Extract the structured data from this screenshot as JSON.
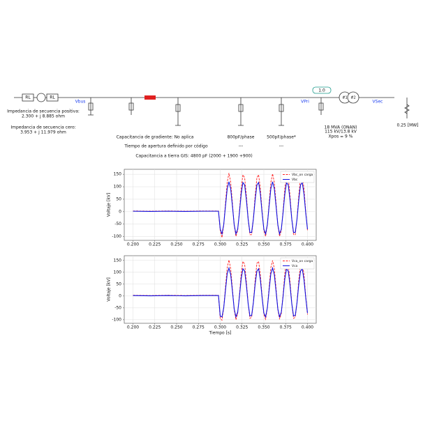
{
  "diagram": {
    "source": {
      "rl1": "RL",
      "rl2": "RL"
    },
    "buses": {
      "vbus": "Vbus",
      "vpri": "VPri",
      "vsec": "VSec"
    },
    "gain": "1.0",
    "transformer": {
      "w1": "#1",
      "w2": "#2",
      "rating": "18 MVA (ONAN)",
      "voltage": "115 kV/13.8 kV",
      "xpos": "Xpos = 9 %"
    },
    "load": "0.25 [MW]",
    "impedance": {
      "pos_label": "Impedancia de secuencia positiva:",
      "pos_value": "2.300 + j 8.885 ohm",
      "zero_label": "Impedancia de secuencia cero:",
      "zero_value": "3.953 + j 11.979 ohm"
    },
    "notes": {
      "gradient": "Capacitancia de gradiente: No aplica",
      "opening": "Tiempo de apertura definido por código",
      "gis": "Capacitancia a tierra GIS: 4800 pF (2000 + 1900 +900)"
    },
    "caps": [
      {
        "label": "800pF/phase",
        "value": "---"
      },
      {
        "label": "500pF/phase*",
        "value": "---"
      }
    ]
  },
  "chart_data": [
    {
      "type": "line",
      "ylabel": "Voltaje [kV]",
      "grid": true,
      "legend": "upper right",
      "x": [
        0.2,
        0.22,
        0.24,
        0.26,
        0.28,
        0.298,
        0.3,
        0.302,
        0.304,
        0.306,
        0.308,
        0.31,
        0.312,
        0.314,
        0.316,
        0.318,
        0.32,
        0.322,
        0.324,
        0.326,
        0.328,
        0.33,
        0.332,
        0.334,
        0.336,
        0.338,
        0.34,
        0.342,
        0.344,
        0.346,
        0.348,
        0.35,
        0.352,
        0.354,
        0.356,
        0.358,
        0.36,
        0.362,
        0.364,
        0.366,
        0.368,
        0.37,
        0.372,
        0.374,
        0.376,
        0.378,
        0.38,
        0.382,
        0.384,
        0.386,
        0.388,
        0.39,
        0.392,
        0.394,
        0.396,
        0.398,
        0.4
      ],
      "xlim": [
        0.19,
        0.41
      ],
      "ylim": [
        -115,
        170
      ],
      "xticks": [
        {
          "value": 0.2,
          "label": "0.200"
        },
        {
          "value": 0.225,
          "label": "0.225"
        },
        {
          "value": 0.25,
          "label": "0.250"
        },
        {
          "value": 0.275,
          "label": "0.275"
        },
        {
          "value": 0.3,
          "label": "0.300"
        },
        {
          "value": 0.325,
          "label": "0.325"
        },
        {
          "value": 0.35,
          "label": "0.350"
        },
        {
          "value": 0.375,
          "label": "0.375"
        },
        {
          "value": 0.4,
          "label": "0.400"
        }
      ],
      "yticks": [
        -100,
        -50,
        0,
        50,
        100,
        150
      ],
      "series": [
        {
          "name": "Vbc_on carga",
          "color": "#ff2020",
          "style": "dashed",
          "values": [
            3,
            2,
            3,
            2,
            3,
            3,
            -76,
            -104,
            -54,
            34,
            118,
            155,
            118,
            34,
            -54,
            -99,
            -76,
            2,
            93,
            148,
            136,
            64,
            -28,
            -92,
            -92,
            -28,
            64,
            136,
            148,
            93,
            2,
            -76,
            -99,
            -54,
            34,
            118,
            152,
            118,
            34,
            -54,
            -99,
            -76,
            2,
            93,
            145,
            136,
            64,
            -28,
            -92,
            -92,
            -28,
            64,
            136,
            144,
            93,
            2,
            -76
          ]
        },
        {
          "name": "Vbc",
          "color": "#1010e0",
          "style": "solid",
          "values": [
            2,
            1,
            2,
            1,
            2,
            2,
            -70,
            -89,
            -52,
            22,
            92,
            120,
            92,
            22,
            -52,
            -89,
            -70,
            -5,
            71,
            117,
            107,
            47,
            -30,
            -83,
            -83,
            -30,
            47,
            107,
            117,
            71,
            -5,
            -70,
            -89,
            -52,
            22,
            92,
            120,
            92,
            22,
            -52,
            -89,
            -70,
            -5,
            71,
            117,
            107,
            47,
            -30,
            -83,
            -83,
            -30,
            47,
            107,
            117,
            71,
            -5,
            -70
          ]
        }
      ]
    },
    {
      "type": "line",
      "ylabel": "Voltaje [kV]",
      "xlabel": "Tiempo [s]",
      "grid": true,
      "legend": "upper right",
      "x": [
        0.2,
        0.22,
        0.24,
        0.26,
        0.28,
        0.298,
        0.3,
        0.302,
        0.304,
        0.306,
        0.308,
        0.31,
        0.312,
        0.314,
        0.316,
        0.318,
        0.32,
        0.322,
        0.324,
        0.326,
        0.328,
        0.33,
        0.332,
        0.334,
        0.336,
        0.338,
        0.34,
        0.342,
        0.344,
        0.346,
        0.348,
        0.35,
        0.352,
        0.354,
        0.356,
        0.358,
        0.36,
        0.362,
        0.364,
        0.366,
        0.368,
        0.37,
        0.372,
        0.374,
        0.376,
        0.378,
        0.38,
        0.382,
        0.384,
        0.386,
        0.388,
        0.39,
        0.392,
        0.394,
        0.396,
        0.398,
        0.4
      ],
      "xlim": [
        0.19,
        0.41
      ],
      "ylim": [
        -115,
        170
      ],
      "xticks": [
        {
          "value": 0.2,
          "label": "0.200"
        },
        {
          "value": 0.225,
          "label": "0.225"
        },
        {
          "value": 0.25,
          "label": "0.250"
        },
        {
          "value": 0.275,
          "label": "0.275"
        },
        {
          "value": 0.3,
          "label": "0.300"
        },
        {
          "value": 0.325,
          "label": "0.325"
        },
        {
          "value": 0.35,
          "label": "0.350"
        },
        {
          "value": 0.375,
          "label": "0.375"
        },
        {
          "value": 0.4,
          "label": "0.400"
        }
      ],
      "yticks": [
        -100,
        -50,
        0,
        50,
        100,
        150
      ],
      "series": [
        {
          "name": "Vca_on carga",
          "color": "#ff2020",
          "style": "dashed",
          "values": [
            3,
            2,
            3,
            2,
            3,
            3,
            -95,
            -102,
            -50,
            38,
            120,
            152,
            115,
            30,
            -58,
            -100,
            -74,
            4,
            95,
            146,
            134,
            60,
            -30,
            -94,
            -90,
            -26,
            66,
            138,
            146,
            90,
            0,
            -78,
            -98,
            -52,
            36,
            120,
            150,
            116,
            32,
            -56,
            -98,
            -74,
            4,
            96,
            144,
            132,
            62,
            -30,
            -94,
            -90,
            -26,
            66,
            134,
            142,
            90,
            0,
            -78
          ]
        },
        {
          "name": "Vca",
          "color": "#1010e0",
          "style": "solid",
          "values": [
            2,
            1,
            2,
            1,
            2,
            2,
            -85,
            -88,
            -50,
            24,
            94,
            118,
            90,
            20,
            -54,
            -88,
            -68,
            -3,
            73,
            115,
            105,
            45,
            -32,
            -84,
            -82,
            -28,
            49,
            105,
            115,
            69,
            -7,
            -72,
            -88,
            -50,
            24,
            94,
            118,
            90,
            20,
            -54,
            -88,
            -68,
            -3,
            73,
            115,
            105,
            45,
            -32,
            -84,
            -82,
            -28,
            49,
            105,
            115,
            69,
            -7,
            -72
          ]
        }
      ]
    }
  ]
}
